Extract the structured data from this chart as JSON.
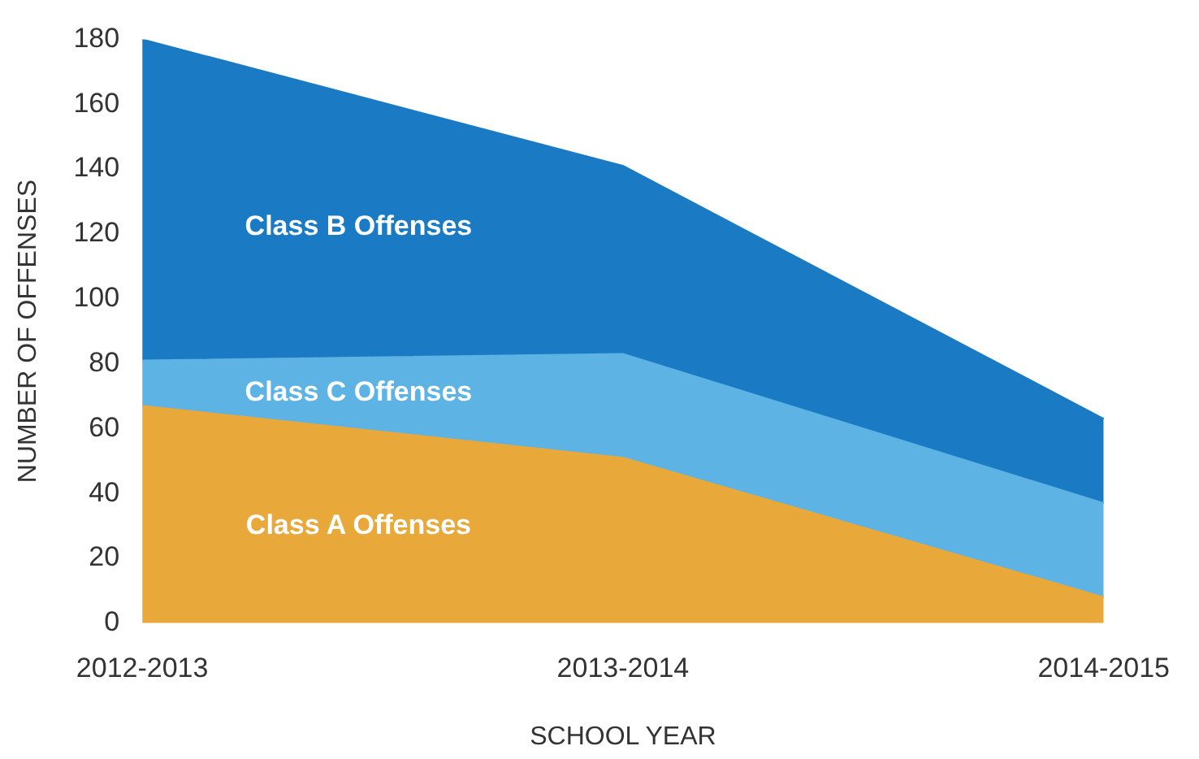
{
  "chart_data": {
    "type": "area",
    "stacked": true,
    "xlabel": "SCHOOL YEAR",
    "ylabel": "NUMBER OF OFFENSES",
    "categories": [
      "2012-2013",
      "2013-2014",
      "2014-2015"
    ],
    "ylim": [
      0,
      180
    ],
    "yticks": [
      0,
      20,
      40,
      60,
      80,
      100,
      120,
      140,
      160,
      180
    ],
    "grid": false,
    "legend": false,
    "series": [
      {
        "name": "Class A Offenses",
        "color": "#e8a93a",
        "values": [
          67,
          51,
          8
        ]
      },
      {
        "name": "Class C Offenses",
        "color": "#5db3e3",
        "values": [
          14,
          32,
          29
        ]
      },
      {
        "name": "Class B Offenses",
        "color": "#1a7bc4",
        "values": [
          99,
          58,
          26
        ]
      }
    ]
  }
}
